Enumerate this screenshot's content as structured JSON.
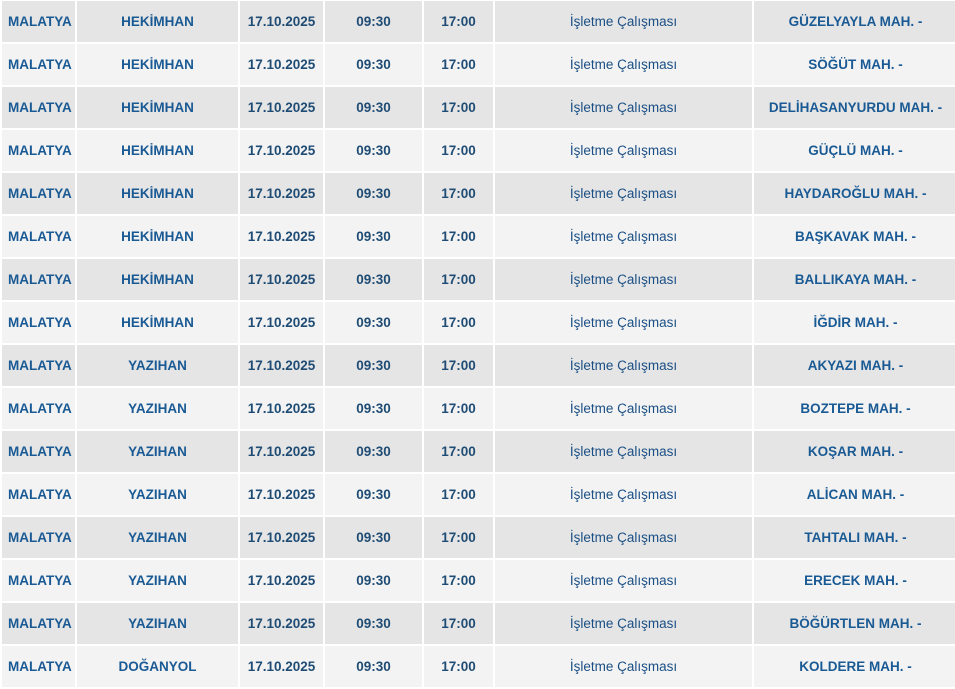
{
  "table": {
    "rows": [
      [
        "MALATYA",
        "HEKİMHAN",
        "17.10.2025",
        "09:30",
        "17:00",
        "İşletme Çalışması",
        "GÜZELYAYLA MAH. -"
      ],
      [
        "MALATYA",
        "HEKİMHAN",
        "17.10.2025",
        "09:30",
        "17:00",
        "İşletme Çalışması",
        "SÖĞÜT MAH. -"
      ],
      [
        "MALATYA",
        "HEKİMHAN",
        "17.10.2025",
        "09:30",
        "17:00",
        "İşletme Çalışması",
        "DELİHASANYURDU MAH. -"
      ],
      [
        "MALATYA",
        "HEKİMHAN",
        "17.10.2025",
        "09:30",
        "17:00",
        "İşletme Çalışması",
        "GÜÇLÜ MAH. -"
      ],
      [
        "MALATYA",
        "HEKİMHAN",
        "17.10.2025",
        "09:30",
        "17:00",
        "İşletme Çalışması",
        "HAYDAROĞLU MAH. -"
      ],
      [
        "MALATYA",
        "HEKİMHAN",
        "17.10.2025",
        "09:30",
        "17:00",
        "İşletme Çalışması",
        "BAŞKAVAK MAH. -"
      ],
      [
        "MALATYA",
        "HEKİMHAN",
        "17.10.2025",
        "09:30",
        "17:00",
        "İşletme Çalışması",
        "BALLIKAYA MAH. -"
      ],
      [
        "MALATYA",
        "HEKİMHAN",
        "17.10.2025",
        "09:30",
        "17:00",
        "İşletme Çalışması",
        "İĞDİR MAH. -"
      ],
      [
        "MALATYA",
        "YAZIHAN",
        "17.10.2025",
        "09:30",
        "17:00",
        "İşletme Çalışması",
        "AKYAZI MAH. -"
      ],
      [
        "MALATYA",
        "YAZIHAN",
        "17.10.2025",
        "09:30",
        "17:00",
        "İşletme Çalışması",
        "BOZTEPE MAH. -"
      ],
      [
        "MALATYA",
        "YAZIHAN",
        "17.10.2025",
        "09:30",
        "17:00",
        "İşletme Çalışması",
        "KOŞAR MAH. -"
      ],
      [
        "MALATYA",
        "YAZIHAN",
        "17.10.2025",
        "09:30",
        "17:00",
        "İşletme Çalışması",
        "ALİCAN MAH. -"
      ],
      [
        "MALATYA",
        "YAZIHAN",
        "17.10.2025",
        "09:30",
        "17:00",
        "İşletme Çalışması",
        "TAHTALI MAH. -"
      ],
      [
        "MALATYA",
        "YAZIHAN",
        "17.10.2025",
        "09:30",
        "17:00",
        "İşletme Çalışması",
        "ERECEK MAH. -"
      ],
      [
        "MALATYA",
        "YAZIHAN",
        "17.10.2025",
        "09:30",
        "17:00",
        "İşletme Çalışması",
        "BÖĞÜRTLEN MAH. -"
      ],
      [
        "MALATYA",
        "DOĞANYOL",
        "17.10.2025",
        "09:30",
        "17:00",
        "İşletme Çalışması",
        "KOLDERE MAH. -"
      ]
    ]
  }
}
